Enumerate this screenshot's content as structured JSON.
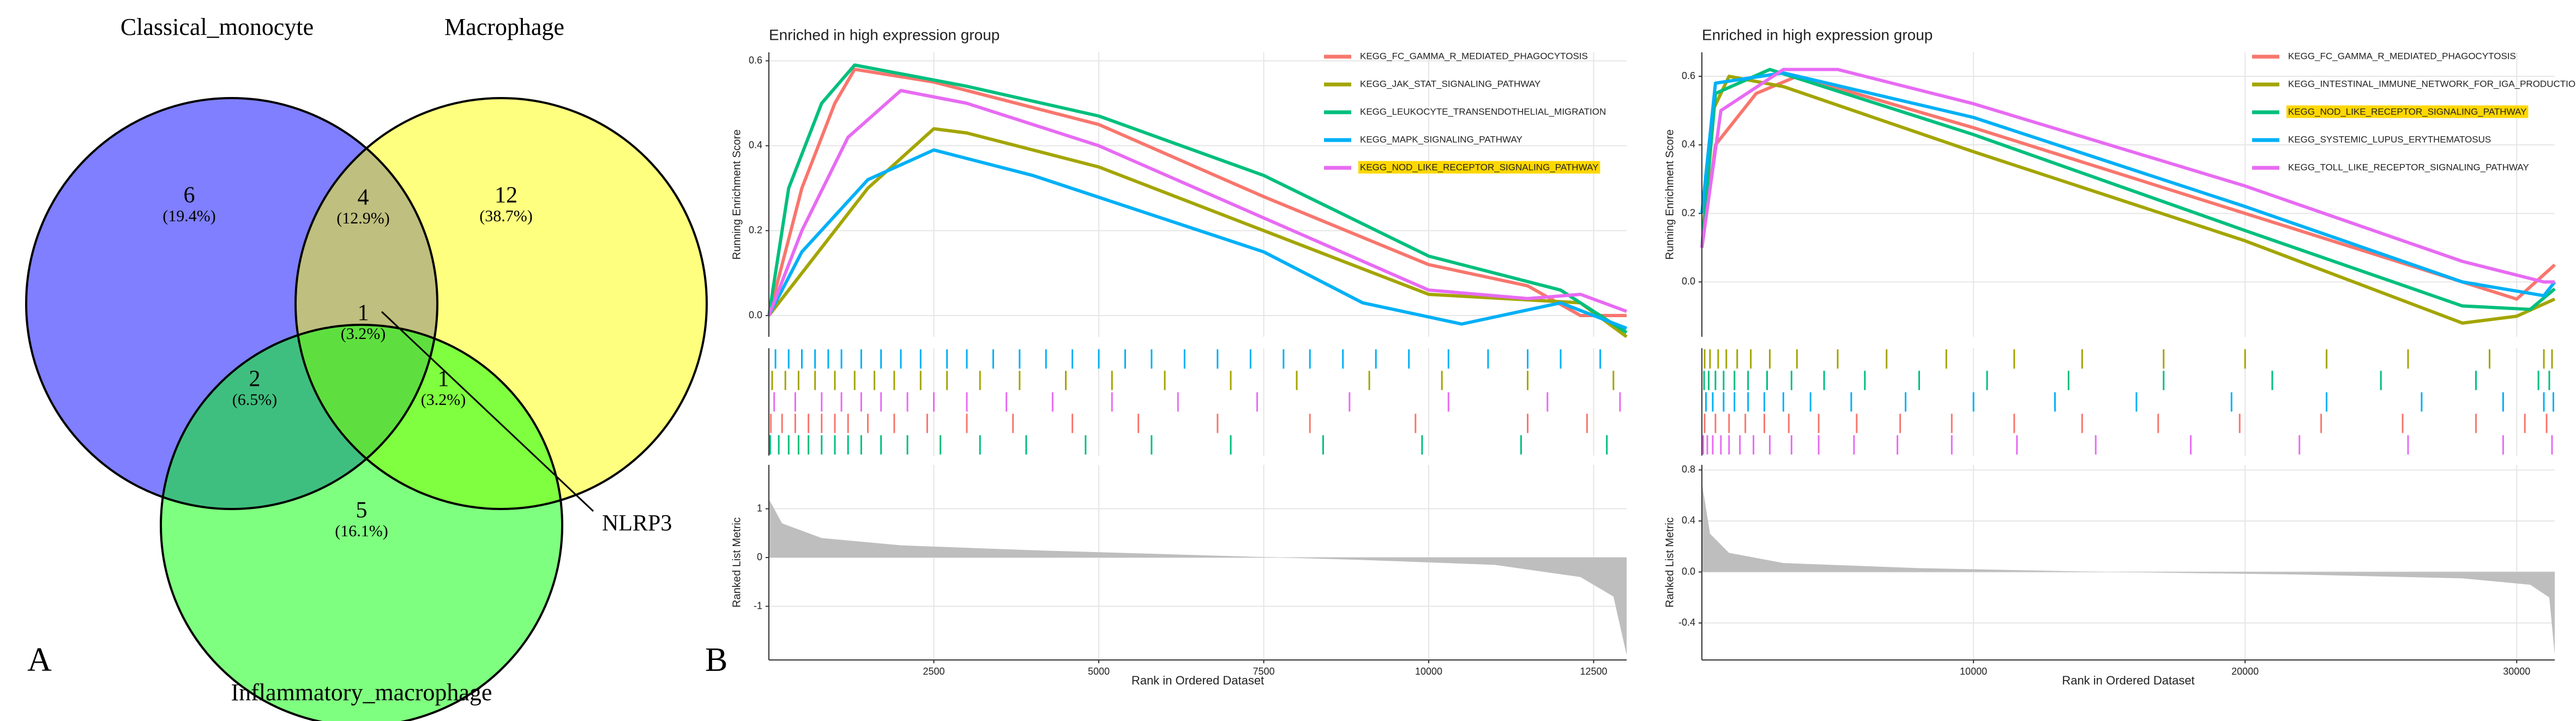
{
  "chart_data": [
    {
      "type": "venn",
      "panel_label": "A",
      "fill_opacity": 0.5,
      "sets": [
        {
          "name": "Classical_monocyte",
          "color": "#0000FF"
        },
        {
          "name": "Macrophage",
          "color": "#FFFF00"
        },
        {
          "name": "Inflammatory_macrophage",
          "color": "#00FF00"
        }
      ],
      "values": [
        6,
        4,
        12,
        2,
        1,
        1,
        5
      ],
      "shares": [
        19.4,
        12.9,
        38.7,
        6.5,
        3.2,
        3.2,
        16.1
      ],
      "share_labels": [
        "(19.4%)",
        "(12.9%)",
        "(38.7%)",
        "(6.5%)",
        "(3.2%)",
        "(3.2%)",
        "(16.1%)"
      ],
      "annotation": "NLRP3"
    },
    {
      "type": "gsea",
      "panel_label": "B",
      "title": "Enriched in high expression group",
      "x_label": "Rank in Ordered Dataset",
      "y_label": "Running Enrichment Score",
      "metric_label": "Ranked List Metric",
      "xlim": [
        0,
        13000
      ],
      "xticks": [
        2500,
        5000,
        7500,
        10000,
        12500
      ],
      "ylim": [
        -0.05,
        0.62
      ],
      "yticks": [
        {
          "value": 0,
          "label": "0.0"
        },
        0.2,
        0.4,
        0.6
      ],
      "metric_ylim": [
        -2.1,
        1.9
      ],
      "metric_yticks": [
        -1,
        0,
        1
      ],
      "grid": true,
      "highlight_color": "#FFD700",
      "metric_color": "#BEBEBE",
      "metric_x": [
        0,
        200,
        800,
        2000,
        4000,
        6500,
        9000,
        11000,
        12300,
        12800,
        13000
      ],
      "metric_values": [
        1.2,
        0.7,
        0.4,
        0.25,
        0.15,
        0.05,
        -0.05,
        -0.15,
        -0.4,
        -0.8,
        -2.0
      ],
      "hit_order": [
        3,
        1,
        4,
        0,
        2
      ],
      "series": [
        {
          "name": "KEGG_FC_GAMMA_R_MEDIATED_PHAGOCYTOSIS",
          "color": "#F8766D",
          "highlight": false,
          "x": [
            0,
            500,
            1000,
            1300,
            2500,
            5000,
            7500,
            10000,
            11500,
            12300,
            13000
          ],
          "values": [
            0,
            0.3,
            0.5,
            0.58,
            0.55,
            0.45,
            0.28,
            0.12,
            0.07,
            0.0,
            0.0
          ],
          "hits": [
            30,
            200,
            400,
            600,
            800,
            1000,
            1200,
            1500,
            1900,
            2400,
            3000,
            3700,
            4600,
            5600,
            6800,
            8200,
            9800,
            11500,
            12400
          ]
        },
        {
          "name": "KEGG_JAK_STAT_SIGNALING_PATHWAY",
          "color": "#A3A500",
          "highlight": false,
          "x": [
            0,
            500,
            1500,
            2500,
            3000,
            5000,
            7500,
            10000,
            12300,
            13000
          ],
          "values": [
            0,
            0.1,
            0.3,
            0.44,
            0.43,
            0.35,
            0.2,
            0.05,
            0.03,
            -0.05
          ],
          "hits": [
            50,
            250,
            450,
            700,
            1000,
            1300,
            1600,
            1900,
            2300,
            2700,
            3200,
            3800,
            4500,
            5200,
            6000,
            7000,
            8000,
            9100,
            10200,
            11500,
            12800
          ]
        },
        {
          "name": "KEGG_LEUKOCYTE_TRANSENDOTHELIAL_MIGRATION",
          "color": "#00BF7D",
          "highlight": false,
          "x": [
            0,
            300,
            800,
            1300,
            3000,
            5000,
            7500,
            10000,
            12000,
            13000
          ],
          "values": [
            0,
            0.3,
            0.5,
            0.59,
            0.54,
            0.47,
            0.33,
            0.14,
            0.06,
            -0.04
          ],
          "hits": [
            20,
            150,
            300,
            450,
            600,
            800,
            1000,
            1200,
            1400,
            1700,
            2100,
            2600,
            3200,
            3900,
            4800,
            5800,
            7000,
            8400,
            9900,
            11400,
            12700
          ]
        },
        {
          "name": "KEGG_MAPK_SIGNALING_PATHWAY",
          "color": "#00B0F6",
          "highlight": false,
          "x": [
            0,
            500,
            1500,
            2500,
            4000,
            7500,
            9000,
            10500,
            12000,
            13000
          ],
          "values": [
            0,
            0.15,
            0.32,
            0.39,
            0.33,
            0.15,
            0.03,
            -0.02,
            0.03,
            -0.03
          ],
          "hits": [
            100,
            300,
            500,
            700,
            900,
            1100,
            1400,
            1700,
            2000,
            2300,
            2700,
            3000,
            3400,
            3800,
            4200,
            4600,
            5000,
            5400,
            5800,
            6300,
            6800,
            7300,
            7800,
            8200,
            8700,
            9200,
            9700,
            10300,
            10900,
            11500,
            12000,
            12600
          ]
        },
        {
          "name": "KEGG_NOD_LIKE_RECEPTOR_SIGNALING_PATHWAY",
          "color": "#E76BF3",
          "highlight": true,
          "x": [
            0,
            500,
            1200,
            2000,
            3000,
            5000,
            7500,
            10000,
            11500,
            12300,
            13000
          ],
          "values": [
            0,
            0.2,
            0.42,
            0.53,
            0.5,
            0.4,
            0.23,
            0.06,
            0.04,
            0.05,
            0.01
          ],
          "hits": [
            80,
            400,
            800,
            1100,
            1400,
            1700,
            2100,
            2500,
            3000,
            3600,
            4300,
            5200,
            6200,
            7400,
            8800,
            10300,
            11800,
            12900
          ]
        }
      ]
    },
    {
      "type": "gsea",
      "title": "Enriched in high expression group",
      "x_label": "Rank in Ordered Dataset",
      "y_label": "Running Enrichment Score",
      "metric_label": "Ranked List Metric",
      "xlim": [
        0,
        31400
      ],
      "xticks": [
        10000,
        20000,
        30000
      ],
      "ylim": [
        -0.16,
        0.67
      ],
      "yticks": [
        {
          "value": 0,
          "label": "0.0"
        },
        0.2,
        0.4,
        0.6
      ],
      "metric_ylim": [
        -0.69,
        0.84
      ],
      "metric_yticks": [
        -0.4,
        {
          "value": 0,
          "label": "0.0"
        },
        0.4,
        0.8
      ],
      "grid": true,
      "highlight_color": "#FFD700",
      "metric_color": "#BEBEBE",
      "metric_x": [
        0,
        300,
        1000,
        3000,
        8000,
        15000,
        22000,
        28000,
        30500,
        31200,
        31400
      ],
      "metric_values": [
        0.7,
        0.3,
        0.15,
        0.07,
        0.03,
        0,
        -0.02,
        -0.05,
        -0.1,
        -0.2,
        -0.65
      ],
      "hit_order": [
        1,
        2,
        3,
        0,
        4
      ],
      "series": [
        {
          "name": "KEGG_FC_GAMMA_R_MEDIATED_PHAGOCYTOSIS",
          "color": "#F8766D",
          "highlight": false,
          "x": [
            0,
            500,
            2000,
            3500,
            10000,
            20000,
            28000,
            30000,
            31400
          ],
          "values": [
            0.1,
            0.4,
            0.55,
            0.6,
            0.45,
            0.2,
            0.0,
            -0.05,
            0.05
          ],
          "hits": [
            100,
            500,
            1000,
            1600,
            2300,
            3200,
            4300,
            5700,
            7300,
            9200,
            11500,
            14000,
            16800,
            19800,
            22800,
            25800,
            28500,
            30300,
            31100
          ]
        },
        {
          "name": "KEGG_INTESTINAL_IMMUNE_NETWORK_FOR_IGA_PRODUCTION",
          "color": "#A3A500",
          "highlight": false,
          "x": [
            0,
            400,
            1000,
            3000,
            10000,
            20000,
            28000,
            30000,
            31400
          ],
          "values": [
            0.1,
            0.5,
            0.6,
            0.57,
            0.38,
            0.12,
            -0.12,
            -0.1,
            -0.05
          ],
          "hits": [
            100,
            300,
            600,
            900,
            1300,
            1800,
            2500,
            3500,
            5000,
            6800,
            9000,
            11500,
            14000,
            17000,
            20000,
            23000,
            26000,
            29000,
            31000,
            31300
          ]
        },
        {
          "name": "KEGG_NOD_LIKE_RECEPTOR_SIGNALING_PATHWAY",
          "color": "#00BF7D",
          "highlight": true,
          "x": [
            0,
            500,
            2500,
            10000,
            20000,
            28000,
            30500,
            31400
          ],
          "values": [
            0.1,
            0.55,
            0.62,
            0.43,
            0.15,
            -0.07,
            -0.08,
            -0.02
          ],
          "hits": [
            80,
            250,
            500,
            800,
            1200,
            1700,
            2400,
            3300,
            4500,
            6000,
            8000,
            10500,
            13500,
            17000,
            21000,
            25000,
            28500,
            30800,
            31200
          ]
        },
        {
          "name": "KEGG_SYSTEMIC_LUPUS_ERYTHEMATOSUS",
          "color": "#00B0F6",
          "highlight": false,
          "x": [
            0,
            500,
            3000,
            10000,
            20000,
            28000,
            31000,
            31400
          ],
          "values": [
            0.2,
            0.58,
            0.61,
            0.48,
            0.22,
            0.0,
            -0.04,
            0.0
          ],
          "hits": [
            150,
            400,
            800,
            1200,
            1700,
            2300,
            3000,
            4000,
            5500,
            7500,
            10000,
            13000,
            16000,
            19500,
            23000,
            26500,
            29500,
            31000,
            31350
          ]
        },
        {
          "name": "KEGG_TOLL_LIKE_RECEPTOR_SIGNALING_PATHWAY",
          "color": "#E76BF3",
          "highlight": false,
          "x": [
            0,
            700,
            3000,
            5000,
            10000,
            20000,
            28000,
            31000,
            31400
          ],
          "values": [
            0.1,
            0.5,
            0.62,
            0.62,
            0.52,
            0.28,
            0.06,
            0.0,
            0.0
          ],
          "hits": [
            50,
            200,
            400,
            700,
            1000,
            1400,
            1900,
            2500,
            3300,
            4300,
            5600,
            7200,
            9200,
            11600,
            14500,
            18000,
            22000,
            26000,
            29500,
            31300
          ]
        }
      ]
    }
  ]
}
